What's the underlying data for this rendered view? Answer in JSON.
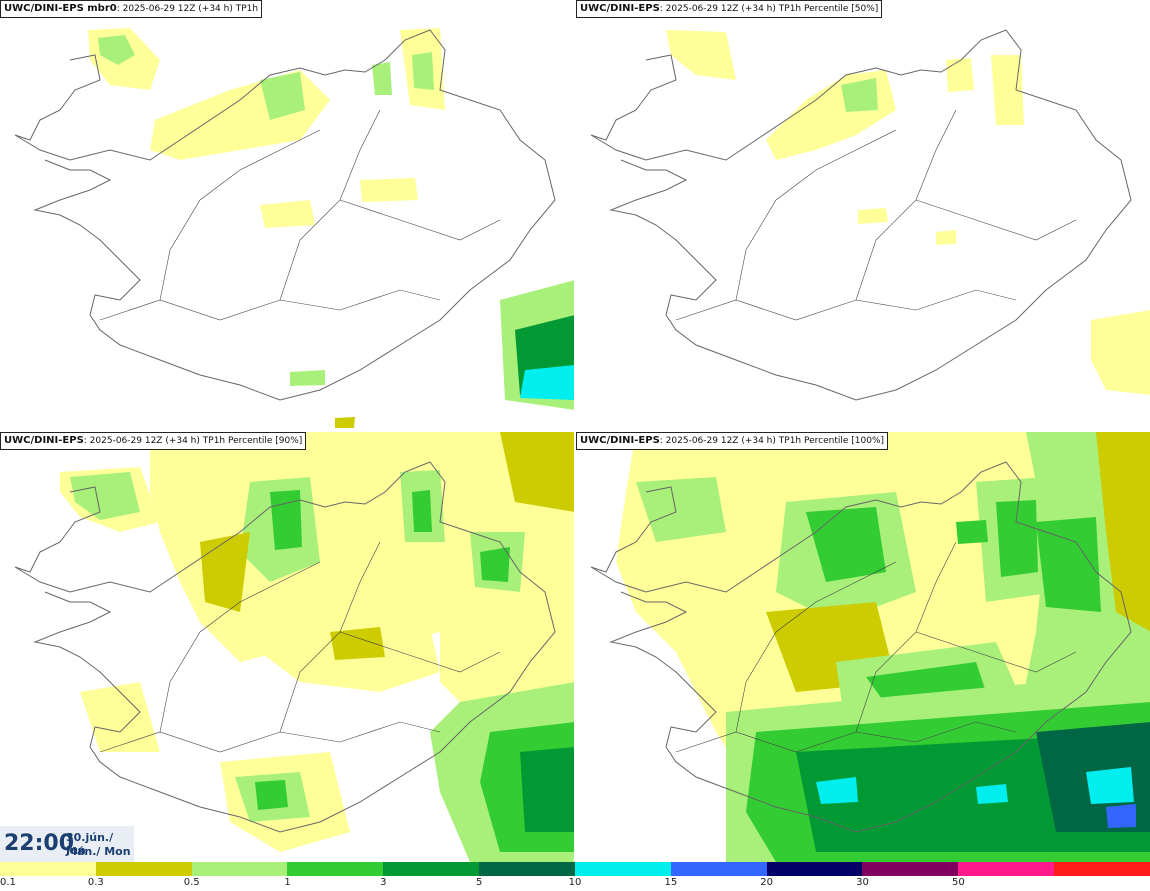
{
  "panels": [
    {
      "model": "UWC/DINI-EPS mbr0",
      "run": "2025-06-29 12Z (+34 h)",
      "field": "TP1h"
    },
    {
      "model": "UWC/DINI-EPS",
      "run": "2025-06-29 12Z (+34 h)",
      "field": "TP1h Percentile [50%]"
    },
    {
      "model": "UWC/DINI-EPS",
      "run": "2025-06-29 12Z (+34 h)",
      "field": "TP1h Percentile [90%]"
    },
    {
      "model": "UWC/DINI-EPS",
      "run": "2025-06-29 12Z (+34 h)",
      "field": "TP1h Percentile [100%]"
    }
  ],
  "valid_time": {
    "time": "22:00",
    "date_line1": "30.jún./ Jun",
    "date_line2": "Mán./ Mon"
  },
  "legend": {
    "labels": [
      "0.1",
      "0.3",
      "0.5",
      "1",
      "3",
      "5",
      "10",
      "15",
      "20",
      "30",
      "50"
    ],
    "colors": [
      "#ffff99",
      "#cccc00",
      "#a8f07a",
      "#33cc33",
      "#009933",
      "#006644",
      "#00eeee",
      "#3366ff",
      "#000066",
      "#800060",
      "#ff1a8c",
      "#ff1a1a"
    ]
  },
  "colors": {
    "coast": "#666666",
    "roads": "#444444",
    "light_yellow": "#ffff99",
    "olive": "#cccc00",
    "light_green": "#a8f07a",
    "green": "#33cc33",
    "dark_green": "#009933",
    "teal": "#006644",
    "cyan": "#00eeee"
  }
}
